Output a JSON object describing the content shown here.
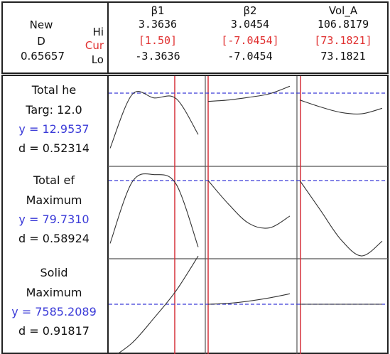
{
  "chart_data": {
    "type": "line",
    "title": "",
    "header": {
      "new_label": "New",
      "d_label": "D",
      "d_value": "0.65657",
      "hi_label": "Hi",
      "cur_label": "Cur",
      "lo_label": "Lo"
    },
    "factors": [
      {
        "name": "β1",
        "hi": "3.3636",
        "cur": "[1.50]",
        "lo": "-3.3636",
        "hi_value": 3.3636,
        "lo_value": -3.3636,
        "cur_value": 1.5
      },
      {
        "name": "β2",
        "hi": "3.0454",
        "cur": "[-7.0454]",
        "lo": "-7.0454",
        "hi_value": 3.0454,
        "lo_value": -7.0454,
        "cur_value": -7.0454
      },
      {
        "name": "Vol_A",
        "hi": "106.8179",
        "cur": "[73.1821]",
        "lo": "73.1821",
        "hi_value": 106.8179,
        "lo_value": 73.1821,
        "cur_value": 73.1821
      }
    ],
    "responses": [
      {
        "name": "Total he",
        "goal": "Targ: 12.0",
        "y": "y = 12.9537",
        "d": "d = 0.52314",
        "y_value": 12.9537,
        "d_value": 0.52314,
        "curves": [
          {
            "factor": "β1",
            "shape": [
              0.2,
              0.98,
              0.93,
              0.92,
              0.4
            ]
          },
          {
            "factor": "β2",
            "shape": [
              0.88,
              0.9,
              0.94,
              0.99,
              1.1
            ]
          },
          {
            "factor": "Vol_A",
            "shape": [
              0.9,
              0.8,
              0.72,
              0.7,
              0.78
            ]
          }
        ]
      },
      {
        "name": "Total ef",
        "goal": "Maximum",
        "y": "y = 79.7310",
        "d": "d = 0.58924",
        "y_value": 79.731,
        "d_value": 0.58924,
        "curves": [
          {
            "factor": "β1",
            "shape": [
              0.15,
              0.98,
              1.08,
              0.95,
              0.1
            ]
          },
          {
            "factor": "β2",
            "shape": [
              1.0,
              0.68,
              0.42,
              0.36,
              0.52
            ]
          },
          {
            "factor": "Vol_A",
            "shape": [
              1.0,
              0.6,
              0.2,
              -0.02,
              0.18
            ]
          }
        ]
      },
      {
        "name": "Solid",
        "goal": "Maximum",
        "y": "y = 7585.2089",
        "d": "d = 0.91817",
        "y_value": 7585.2089,
        "d_value": 0.91817,
        "curves": [
          {
            "factor": "β1",
            "shape": [
              -0.2,
              0.15,
              0.7,
              1.3,
              2.06
            ]
          },
          {
            "factor": "β2",
            "shape": [
              1.0,
              1.02,
              1.07,
              1.14,
              1.23
            ]
          },
          {
            "factor": "Vol_A",
            "shape": [
              1.0,
              1.0,
              1.0,
              1.0,
              1.0
            ]
          }
        ]
      }
    ],
    "colors": {
      "current_line": "#d6303a",
      "target_line": "#3b3bd8",
      "header_red": "#e03030",
      "y_text": "#3b3bd8",
      "curve": "#333333",
      "grid": "#666666"
    }
  }
}
